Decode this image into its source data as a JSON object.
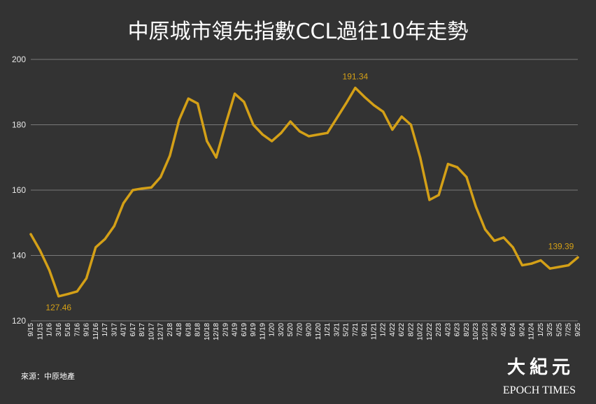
{
  "chart_data": {
    "type": "line",
    "title": "中原城市領先指數CCL過往10年走勢",
    "ylim": [
      120,
      200
    ],
    "yticks": [
      120,
      140,
      160,
      180,
      200
    ],
    "grid": "horizontal",
    "line_color": "#d4a017",
    "xticks": [
      "9/15",
      "11/15",
      "1/16",
      "3/16",
      "5/16",
      "7/16",
      "9/16",
      "11/16",
      "1/17",
      "3/17",
      "4/17",
      "6/17",
      "8/17",
      "10/17",
      "12/17",
      "2/18",
      "4/18",
      "6/18",
      "8/18",
      "10/18",
      "12/18",
      "2/19",
      "4/19",
      "6/19",
      "9/19",
      "11/19",
      "1/20",
      "3/20",
      "5/20",
      "7/20",
      "9/20",
      "11/20",
      "1/21",
      "3/21",
      "5/21",
      "7/21",
      "9/21",
      "11/21",
      "1/22",
      "4/22",
      "6/22",
      "8/22",
      "10/22",
      "12/22",
      "2/23",
      "4/23",
      "6/23",
      "8/23",
      "10/23",
      "12/23",
      "2/24",
      "4/24",
      "6/24",
      "9/24",
      "11/24",
      "1/25",
      "3/25",
      "5/25",
      "7/25",
      "9/25"
    ],
    "series": [
      {
        "values": [
          146.5,
          141.5,
          135.5,
          127.5,
          128.2,
          129.0,
          133.0,
          142.5,
          145.0,
          149.0,
          156.0,
          160.0,
          160.5,
          160.8,
          164.0,
          170.5,
          181.5,
          188.0,
          186.5,
          175.0,
          170.0,
          180.0,
          189.5,
          187.0,
          180.0,
          177.0,
          175.0,
          177.5,
          181.0,
          178.0,
          176.5,
          177.0,
          177.5,
          182.0,
          186.5,
          191.3,
          188.5,
          186.0,
          184.0,
          178.5,
          182.5,
          180.0,
          170.0,
          157.0,
          158.5,
          168.0,
          167.0,
          164.0,
          155.0,
          148.0,
          144.5,
          145.5,
          142.5,
          137.0,
          137.5,
          138.5,
          136.0,
          136.5,
          137.0,
          139.4
        ]
      }
    ],
    "annotations": [
      {
        "label": "127.46",
        "x": "3/16",
        "y": 127.46
      },
      {
        "label": "191.34",
        "x": "7/21",
        "y": 191.34
      },
      {
        "label": "139.39",
        "x": "9/25",
        "y": 139.39
      }
    ]
  },
  "source_text": "來源：中原地產",
  "logo": {
    "name": "大紀元",
    "text_en": "EPOCH TIMES"
  }
}
